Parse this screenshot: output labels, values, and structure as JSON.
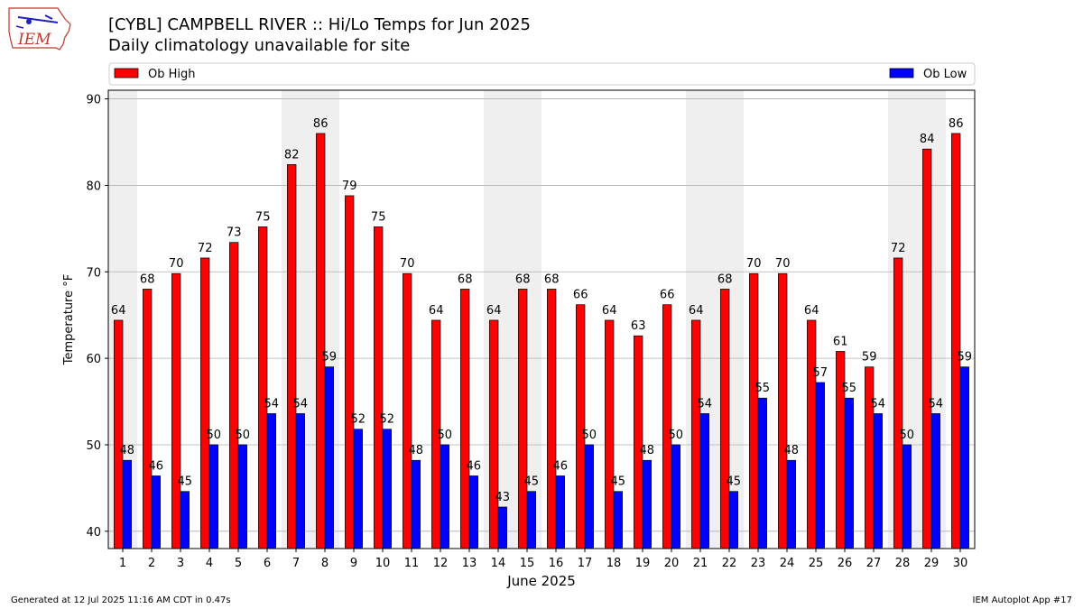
{
  "header": {
    "title": "[CYBL] CAMPBELL RIVER :: Hi/Lo Temps for Jun 2025",
    "subtitle": "Daily climatology unavailable for site",
    "logo_text": "IEM"
  },
  "footer": {
    "generated": "Generated at 12 Jul 2025 11:16 AM CDT in 0.47s",
    "app": "IEM Autoplot App #17"
  },
  "colors": {
    "high": "#ff0000",
    "low": "#0000ff",
    "weekend_shade": "#efefef",
    "grid": "#b0b0b0"
  },
  "chart_data": {
    "type": "bar",
    "xlabel": "June 2025",
    "ylabel": "Temperature °F",
    "ylim": [
      38,
      91
    ],
    "yticks": [
      40,
      50,
      60,
      70,
      80,
      90
    ],
    "grid": "horizontal",
    "legend_placement": "top",
    "categories": [
      "1",
      "2",
      "3",
      "4",
      "5",
      "6",
      "7",
      "8",
      "9",
      "10",
      "11",
      "12",
      "13",
      "14",
      "15",
      "16",
      "17",
      "18",
      "19",
      "20",
      "21",
      "22",
      "23",
      "24",
      "25",
      "26",
      "27",
      "28",
      "29",
      "30"
    ],
    "shaded_days": [
      "1",
      "7",
      "8",
      "14",
      "15",
      "21",
      "22",
      "28",
      "29"
    ],
    "series": [
      {
        "name": "Ob High",
        "color": "#ff0000",
        "values": [
          64.4,
          68,
          69.8,
          71.6,
          73.4,
          75.2,
          82.4,
          86,
          78.8,
          75.2,
          69.8,
          64.4,
          68,
          64.4,
          68,
          68,
          66.2,
          64.4,
          62.6,
          66.2,
          64.4,
          68,
          69.8,
          69.8,
          64.4,
          60.8,
          59,
          71.6,
          84.2,
          86
        ],
        "labels": [
          "64",
          "68",
          "70",
          "72",
          "73",
          "75",
          "82",
          "86",
          "79",
          "75",
          "70",
          "64",
          "68",
          "64",
          "68",
          "68",
          "66",
          "64",
          "63",
          "66",
          "64",
          "68",
          "70",
          "70",
          "64",
          "61",
          "59",
          "72",
          "84",
          "86"
        ]
      },
      {
        "name": "Ob Low",
        "color": "#0000ff",
        "values": [
          48.2,
          46.4,
          44.6,
          50,
          50,
          53.6,
          53.6,
          59,
          51.8,
          51.8,
          48.2,
          50,
          46.4,
          42.8,
          44.6,
          46.4,
          50,
          44.6,
          48.2,
          50,
          53.6,
          44.6,
          55.4,
          48.2,
          57.2,
          55.4,
          53.6,
          50,
          53.6,
          59
        ],
        "labels": [
          "48",
          "46",
          "45",
          "50",
          "50",
          "54",
          "54",
          "59",
          "52",
          "52",
          "48",
          "50",
          "46",
          "43",
          "45",
          "46",
          "50",
          "45",
          "48",
          "50",
          "54",
          "45",
          "55",
          "48",
          "57",
          "55",
          "54",
          "50",
          "54",
          "59"
        ]
      }
    ]
  }
}
